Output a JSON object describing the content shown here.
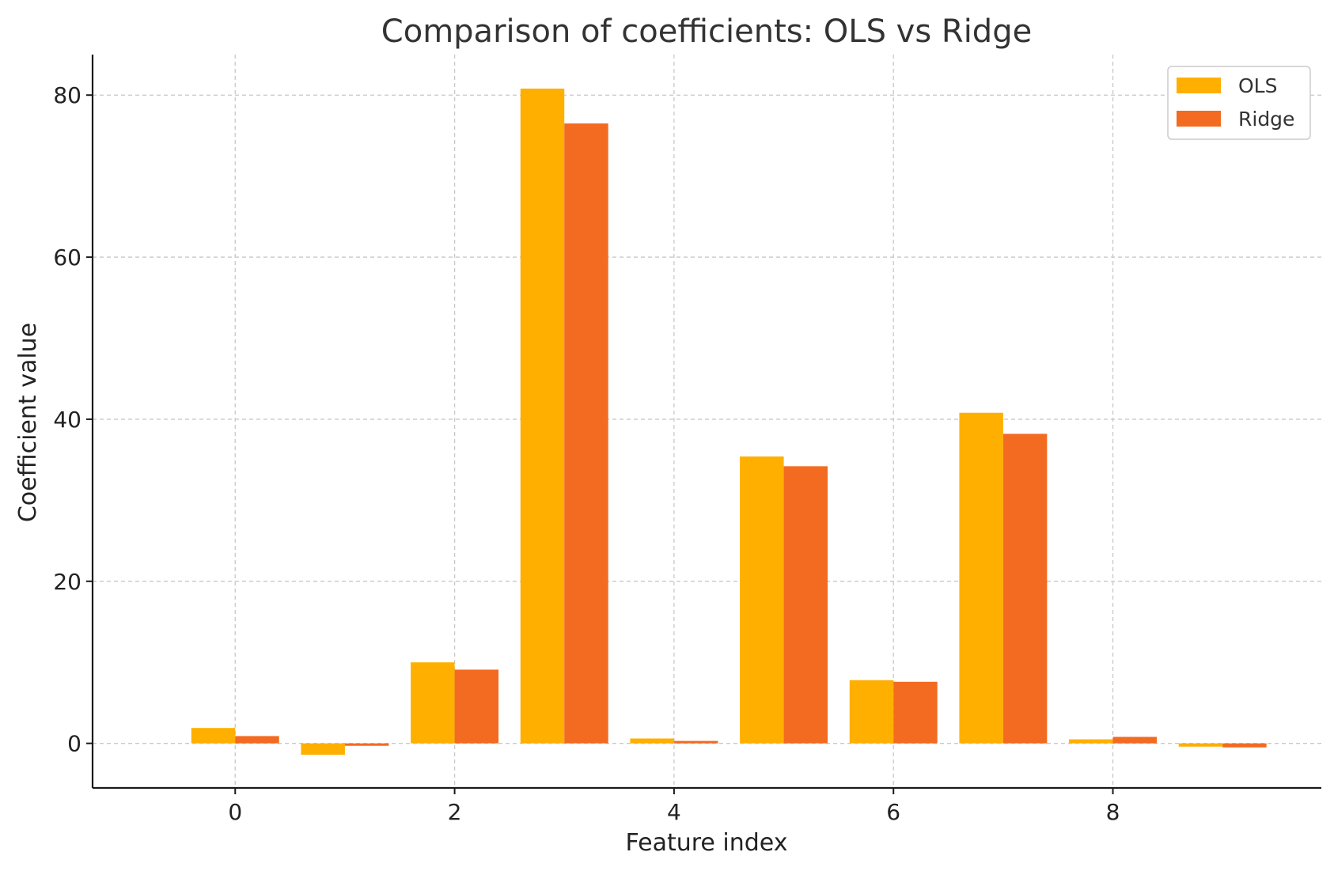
{
  "chart_data": {
    "type": "bar",
    "title": "Comparison of coefficients: OLS vs Ridge",
    "xlabel": "Feature index",
    "ylabel": "Coefficient value",
    "categories": [
      0,
      1,
      2,
      3,
      4,
      5,
      6,
      7,
      8,
      9
    ],
    "x_ticks": [
      0,
      2,
      4,
      6,
      8
    ],
    "y_ticks": [
      0,
      20,
      40,
      60,
      80
    ],
    "xlim": [
      -1.3,
      9.9
    ],
    "ylim": [
      -5.5,
      85
    ],
    "grid": true,
    "legend_position": "top-right",
    "series": [
      {
        "name": "OLS",
        "color": "#FFAF00",
        "values": [
          1.9,
          -1.4,
          10.0,
          80.8,
          0.6,
          35.4,
          7.8,
          40.8,
          0.5,
          -0.4
        ]
      },
      {
        "name": "Ridge",
        "color": "#F26B21",
        "values": [
          0.9,
          -0.3,
          9.1,
          76.5,
          0.3,
          34.2,
          7.6,
          38.2,
          0.8,
          -0.5
        ]
      }
    ]
  }
}
